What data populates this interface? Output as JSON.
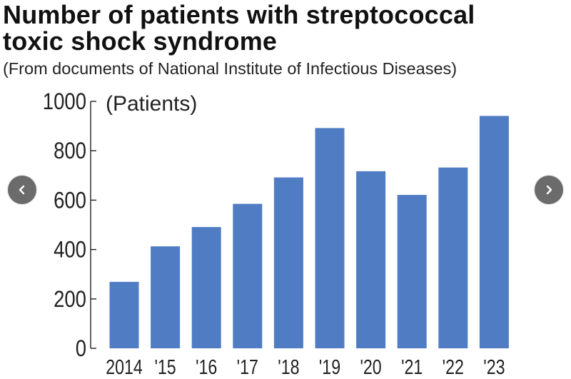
{
  "header": {
    "title_line1": "Number of patients with streptococcal",
    "title_line2": "toxic shock syndrome",
    "subtitle": "(From documents of National Institute of Infectious Diseases)"
  },
  "navigation": {
    "prev_icon": "chevron-left-icon",
    "next_icon": "chevron-right-icon",
    "button_color": "#6b6b6b"
  },
  "chart_data": {
    "type": "bar",
    "title": "Number of patients with streptococcal toxic shock syndrome",
    "subtitle": "(From documents of National Institute of Infectious Diseases)",
    "unit_label": "(Patients)",
    "xlabel": "",
    "ylabel": "",
    "categories": [
      "2014",
      "'15",
      "'16",
      "'17",
      "'18",
      "'19",
      "'20",
      "'21",
      "'22",
      "'23"
    ],
    "values": [
      269,
      413,
      491,
      585,
      692,
      892,
      717,
      621,
      732,
      941
    ],
    "ylim": [
      0,
      1000
    ],
    "yticks": [
      0,
      200,
      400,
      600,
      800,
      1000
    ],
    "bar_color": "#4f7cc3",
    "grid": false,
    "legend": "none"
  }
}
